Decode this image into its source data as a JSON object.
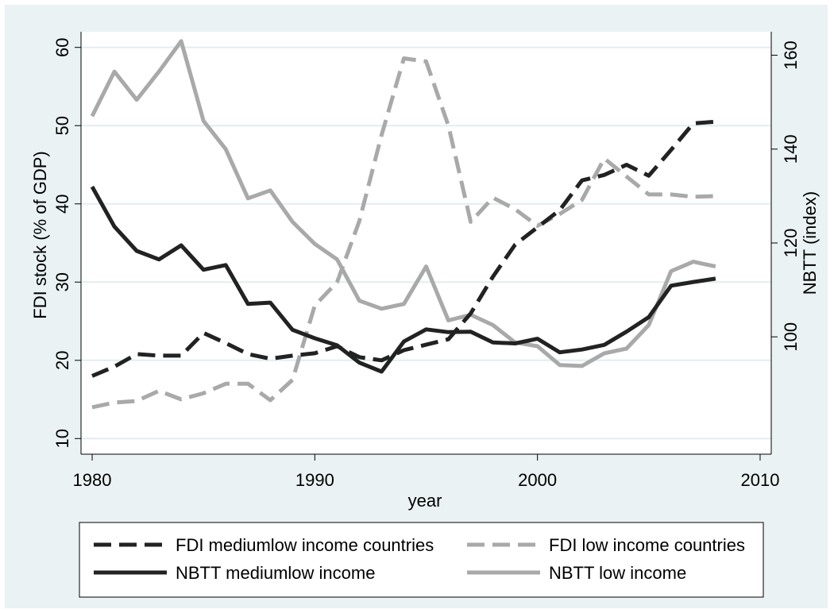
{
  "chart_data": {
    "type": "line",
    "xlabel": "year",
    "ylabel_left": "FDI stock (% of GDP)",
    "ylabel_right": "NBTT (index)",
    "xlim": [
      1979.5,
      2010.5
    ],
    "ylim_left": [
      8,
      62
    ],
    "ylim_right": [
      75,
      165
    ],
    "x_ticks": [
      1980,
      1990,
      2000,
      2010
    ],
    "y_ticks_left": [
      10,
      20,
      30,
      40,
      50,
      60
    ],
    "y_ticks_right": [
      100,
      120,
      140,
      160
    ],
    "grid": true,
    "legend_position": "bottom",
    "x": [
      1980,
      1981,
      1982,
      1983,
      1984,
      1985,
      1986,
      1987,
      1988,
      1989,
      1990,
      1991,
      1992,
      1993,
      1994,
      1995,
      1996,
      1997,
      1998,
      1999,
      2000,
      2001,
      2002,
      2003,
      2004,
      2005,
      2006,
      2007,
      2008
    ],
    "series": [
      {
        "name": "FDI mediumlow income countries",
        "axis": "left",
        "color": "#222222",
        "dash": "dashed",
        "values": [
          18.0,
          19.2,
          20.8,
          20.6,
          20.6,
          23.5,
          22.2,
          20.8,
          20.2,
          20.6,
          20.9,
          21.8,
          20.4,
          20.0,
          21.3,
          22.0,
          22.7,
          26.0,
          30.7,
          34.8,
          37.0,
          39.2,
          43.0,
          43.7,
          45.0,
          43.6,
          46.9,
          50.3,
          50.5
        ]
      },
      {
        "name": "FDI low income countries",
        "axis": "left",
        "color": "#a9a9a9",
        "dash": "dashed",
        "values": [
          14.0,
          14.6,
          14.8,
          16.1,
          15.0,
          15.8,
          17.0,
          17.0,
          14.9,
          17.5,
          27.0,
          30.0,
          37.8,
          48.8,
          58.6,
          58.2,
          50.0,
          37.7,
          40.8,
          39.3,
          37.2,
          38.7,
          40.5,
          45.8,
          43.5,
          41.2,
          41.2,
          40.9,
          41.0
        ]
      },
      {
        "name": "NBTT mediumlow income",
        "axis": "right",
        "color": "#222222",
        "dash": "solid",
        "values": [
          132.0,
          123.5,
          118.3,
          116.5,
          119.5,
          114.3,
          115.3,
          107.0,
          107.3,
          101.5,
          99.7,
          98.2,
          94.5,
          92.6,
          99.0,
          101.6,
          101.0,
          101.1,
          98.8,
          98.6,
          99.6,
          96.7,
          97.3,
          98.3,
          101.1,
          104.2,
          110.9,
          111.7,
          112.4
        ]
      },
      {
        "name": "NBTT low income",
        "axis": "right",
        "color": "#a9a9a9",
        "dash": "solid",
        "values": [
          147.0,
          156.5,
          150.5,
          156.5,
          163.0,
          146.0,
          140.0,
          129.5,
          131.2,
          124.5,
          119.8,
          116.5,
          107.7,
          106.0,
          107.0,
          115.0,
          103.5,
          104.7,
          102.5,
          98.8,
          98.0,
          94.0,
          93.8,
          96.5,
          97.5,
          102.5,
          114.0,
          116.0,
          115.0
        ]
      }
    ]
  }
}
